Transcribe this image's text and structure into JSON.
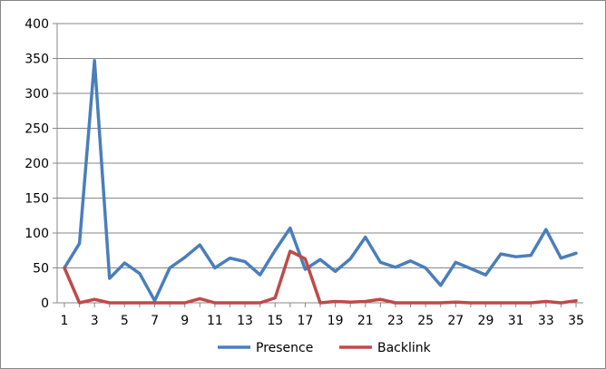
{
  "chart_data": {
    "type": "line",
    "title": "",
    "xlabel": "",
    "ylabel": "",
    "ylim": [
      0,
      400
    ],
    "yticks": [
      0,
      50,
      100,
      150,
      200,
      250,
      300,
      350,
      400
    ],
    "xlim": [
      1,
      35
    ],
    "xtick_labels": [
      1,
      3,
      5,
      7,
      9,
      11,
      13,
      15,
      17,
      19,
      21,
      23,
      25,
      27,
      29,
      31,
      33,
      35
    ],
    "x": [
      1,
      2,
      3,
      4,
      5,
      6,
      7,
      8,
      9,
      10,
      11,
      12,
      13,
      14,
      15,
      16,
      17,
      18,
      19,
      20,
      21,
      22,
      23,
      24,
      25,
      26,
      27,
      28,
      29,
      30,
      31,
      32,
      33,
      34,
      35
    ],
    "grid": "horizontal",
    "legend_position": "bottom",
    "series": [
      {
        "name": "Presence",
        "color": "#4a7ebb",
        "values": [
          50,
          85,
          347,
          35,
          57,
          42,
          3,
          50,
          65,
          83,
          50,
          64,
          59,
          40,
          75,
          107,
          48,
          62,
          45,
          63,
          94,
          58,
          51,
          60,
          50,
          25,
          58,
          49,
          40,
          70,
          66,
          68,
          105,
          64,
          71
        ]
      },
      {
        "name": "Backlink",
        "color": "#be4b48",
        "values": [
          50,
          0,
          5,
          0,
          0,
          0,
          0,
          0,
          0,
          6,
          0,
          0,
          0,
          0,
          7,
          74,
          63,
          0,
          2,
          1,
          2,
          5,
          0,
          0,
          0,
          0,
          1,
          0,
          0,
          0,
          0,
          0,
          2,
          0,
          3
        ]
      }
    ]
  }
}
